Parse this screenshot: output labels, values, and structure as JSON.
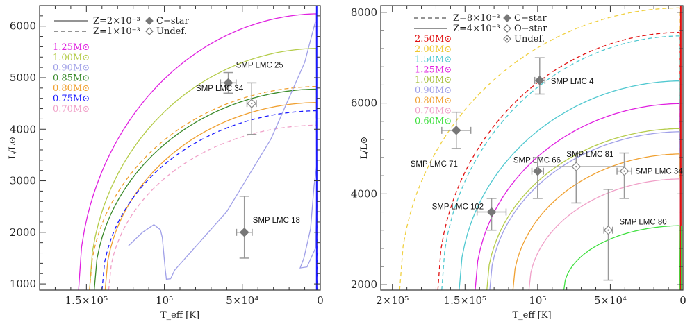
{
  "chart_data": [
    {
      "type": "line",
      "title": "",
      "xlabel": "T_eff [K]",
      "ylabel": "L/L⊙",
      "xlim": [
        180000,
        0
      ],
      "ylim": [
        880,
        6400
      ],
      "xticks": [
        {
          "v": 150000,
          "label": "1.5×10⁵"
        },
        {
          "v": 100000,
          "label": "10⁵"
        },
        {
          "v": 50000,
          "label": "5×10⁴"
        },
        {
          "v": 0,
          "label": "0"
        }
      ],
      "yticks": [
        1000,
        2000,
        3000,
        4000,
        5000,
        6000
      ],
      "legend_lines": [
        {
          "style": "solid",
          "label": "Z=2×10⁻³"
        },
        {
          "style": "dashed",
          "label": "Z=1×10⁻³"
        }
      ],
      "legend_markers": [
        {
          "marker": "filled-diamond",
          "label": "C−star"
        },
        {
          "marker": "open-diamond",
          "label": "Undef."
        }
      ],
      "legend_masses": [
        {
          "label": "1.25M⊙",
          "color": "#e020e0"
        },
        {
          "label": "1.00M⊙",
          "color": "#b5cc4a"
        },
        {
          "label": "0.90M⊙",
          "color": "#a0a0e8"
        },
        {
          "label": "0.85M⊙",
          "color": "#3a8a2a"
        },
        {
          "label": "0.80M⊙",
          "color": "#f0a030"
        },
        {
          "label": "0.75M⊙",
          "color": "#1a1aff"
        },
        {
          "label": "0.70M⊙",
          "color": "#f0a0c8"
        }
      ],
      "tracks": [
        {
          "mass": "1.25",
          "style": "solid",
          "color": "#e020e0",
          "Tmax": 155000,
          "Lmax": 6240
        },
        {
          "mass": "1.00",
          "style": "solid",
          "color": "#b5cc4a",
          "Tmax": 148000,
          "Lmax": 5570
        },
        {
          "mass": "0.85",
          "style": "solid",
          "color": "#3a8a2a",
          "Tmax": 145000,
          "Lmax": 4780
        },
        {
          "mass": "0.80",
          "style": "solid",
          "color": "#f0a030",
          "Tmax": 138000,
          "Lmax": 4520
        },
        {
          "mass": "0.80",
          "style": "dashed",
          "color": "#f0a030",
          "Tmax": 148000,
          "Lmax": 4830
        },
        {
          "mass": "0.75",
          "style": "dashed",
          "color": "#1a1aff",
          "Tmax": 140000,
          "Lmax": 4360
        },
        {
          "mass": "0.70",
          "style": "dashed",
          "color": "#f0a0c8",
          "Tmax": 135700,
          "Lmax": 4080
        }
      ],
      "polylines": [
        {
          "mass": "0.90",
          "style": "solid",
          "color": "#a0a0e8",
          "points": [
            [
              123000,
              1740
            ],
            [
              114000,
              2000
            ],
            [
              106700,
              2150
            ],
            [
              102500,
              2050
            ],
            [
              101300,
              1900
            ],
            [
              99500,
              1300
            ],
            [
              98700,
              1090
            ],
            [
              96000,
              1100
            ],
            [
              93300,
              1270
            ],
            [
              60000,
              2400
            ],
            [
              31700,
              3810
            ],
            [
              10000,
              5300
            ],
            [
              3100,
              6090
            ]
          ]
        },
        {
          "mass": "0.90",
          "style": "solid",
          "color": "#a0a0e8",
          "points": [
            [
              1800,
              3410
            ],
            [
              4000,
              2900
            ],
            [
              6250,
              2070
            ],
            [
              10500,
              1500
            ],
            [
              12900,
              1310
            ],
            [
              8500,
              1330
            ],
            [
              3000,
              1700
            ],
            [
              1800,
              3410
            ]
          ]
        },
        {
          "mass": "0.75",
          "style": "solid",
          "color": "#1a1aff",
          "points": [
            [
              2300,
              6400
            ],
            [
              2300,
              880
            ]
          ]
        }
      ],
      "points": [
        {
          "name": "SMP LMC 25",
          "type": "C-star",
          "T": 59000,
          "L": 4900,
          "Terr": [
            54000,
            64000
          ],
          "Lerr": [
            4700,
            5100
          ]
        },
        {
          "name": "SMP LMC 34",
          "type": "Undef.",
          "T": 44000,
          "L": 4500,
          "Terr": [
            41000,
            47000
          ],
          "Lerr": [
            3900,
            4900
          ]
        },
        {
          "name": "SMP LMC 18",
          "type": "C-star",
          "T": 48700,
          "L": 2000,
          "Terr": [
            43700,
            53700
          ],
          "Lerr": [
            1500,
            2700
          ]
        }
      ]
    },
    {
      "type": "line",
      "title": "",
      "xlabel": "T_eff [K]",
      "ylabel": "L/L⊙",
      "xlim": [
        208000,
        0
      ],
      "ylim": [
        1880,
        8150
      ],
      "xticks": [
        {
          "v": 200000,
          "label": "2×10⁵"
        },
        {
          "v": 150000,
          "label": "1.5×10⁵"
        },
        {
          "v": 100000,
          "label": "10⁵"
        },
        {
          "v": 50000,
          "label": "5×10⁴"
        },
        {
          "v": 0,
          "label": "0"
        }
      ],
      "yticks": [
        2000,
        4000,
        6000,
        8000
      ],
      "legend_lines": [
        {
          "style": "dashed",
          "label": "Z=8×10⁻³"
        },
        {
          "style": "solid",
          "label": "Z=4×10⁻³"
        }
      ],
      "legend_markers": [
        {
          "marker": "filled-diamond",
          "label": "C−star"
        },
        {
          "marker": "open-diamond",
          "label": "O−star"
        },
        {
          "marker": "dot-diamond",
          "label": "Undef."
        }
      ],
      "legend_masses": [
        {
          "label": "2.50M⊙",
          "color": "#e01010"
        },
        {
          "label": "2.00M⊙",
          "color": "#f0c830"
        },
        {
          "label": "1.50M⊙",
          "color": "#50c8d0"
        },
        {
          "label": "1.25M⊙",
          "color": "#e020e0"
        },
        {
          "label": "1.00M⊙",
          "color": "#a8c040"
        },
        {
          "label": "0.90M⊙",
          "color": "#a0a0e8"
        },
        {
          "label": "0.80M⊙",
          "color": "#f0a030"
        },
        {
          "label": "0.70M⊙",
          "color": "#f0a0c8"
        },
        {
          "label": "0.60M⊙",
          "color": "#40e040"
        }
      ],
      "tracks": [
        {
          "mass": "2.00",
          "style": "dashed",
          "color": "#f0d040",
          "Tmax": 195000,
          "Lmax": 8100
        },
        {
          "mass": "2.50",
          "style": "dashed",
          "color": "#e01010",
          "Tmax": 168700,
          "Lmax": 7560
        },
        {
          "mass": "1.50",
          "style": "dashed",
          "color": "#50c8d0",
          "Tmax": 166000,
          "Lmax": 7480
        },
        {
          "mass": "1.50",
          "style": "solid",
          "color": "#50c8d0",
          "Tmax": 154000,
          "Lmax": 6490
        },
        {
          "mass": "1.25",
          "style": "solid",
          "color": "#e020e0",
          "Tmax": 143000,
          "Lmax": 5990
        },
        {
          "mass": "1.00",
          "style": "solid",
          "color": "#b5cc4a",
          "Tmax": 135000,
          "Lmax": 5440
        },
        {
          "mass": "0.90",
          "style": "solid",
          "color": "#a0a0e8",
          "Tmax": 133000,
          "Lmax": 5370
        },
        {
          "mass": "0.80",
          "style": "solid",
          "color": "#f0a030",
          "Tmax": 117000,
          "Lmax": 4880
        },
        {
          "mass": "0.70",
          "style": "solid",
          "color": "#f0a0c8",
          "Tmax": 106000,
          "Lmax": 4330
        },
        {
          "mass": "0.60",
          "style": "solid",
          "color": "#40e040",
          "Tmax": 82000,
          "Lmax": 3300
        }
      ],
      "polylines": [
        {
          "mass": "2.50",
          "style": "solid",
          "color": "#e01010",
          "points": [
            [
              1500,
              8150
            ],
            [
              1500,
              1880
            ]
          ]
        },
        {
          "mass": "0.60",
          "style": "solid",
          "color": "#40e040",
          "points": [
            [
              900,
              3300
            ],
            [
              900,
              1880
            ]
          ]
        }
      ],
      "points": [
        {
          "name": "SMP LMC 4",
          "type": "C-star",
          "T": 98600,
          "L": 6500,
          "Terr": [
            95000,
            102000
          ],
          "Lerr": [
            6200,
            7000
          ]
        },
        {
          "name": "SMP LMC 71",
          "type": "C-star",
          "T": 156000,
          "L": 5400,
          "Terr": [
            146000,
            166000
          ],
          "Lerr": [
            5000,
            5800
          ]
        },
        {
          "name": "SMP LMC 66",
          "type": "C-star",
          "T": 100000,
          "L": 4500,
          "Terr": [
            96000,
            104000
          ],
          "Lerr": [
            3900,
            4800
          ]
        },
        {
          "name": "SMP LMC 81",
          "type": "Undef.",
          "T": 73500,
          "L": 4600,
          "Terr": [
            40000,
            100000
          ],
          "Lerr": [
            3800,
            4900
          ]
        },
        {
          "name": "SMP LMC 34",
          "type": "Undef.",
          "T": 40400,
          "L": 4500,
          "Terr": [
            35400,
            45400
          ],
          "Lerr": [
            3900,
            4900
          ]
        },
        {
          "name": "SMP LMC 102",
          "type": "C-star",
          "T": 131700,
          "L": 3600,
          "Terr": [
            121700,
            141700
          ],
          "Lerr": [
            3200,
            3900
          ]
        },
        {
          "name": "SMP LMC 80",
          "type": "Undef.",
          "T": 51400,
          "L": 3200,
          "Terr": [
            48400,
            54400
          ],
          "Lerr": [
            2100,
            4100
          ]
        }
      ]
    }
  ]
}
